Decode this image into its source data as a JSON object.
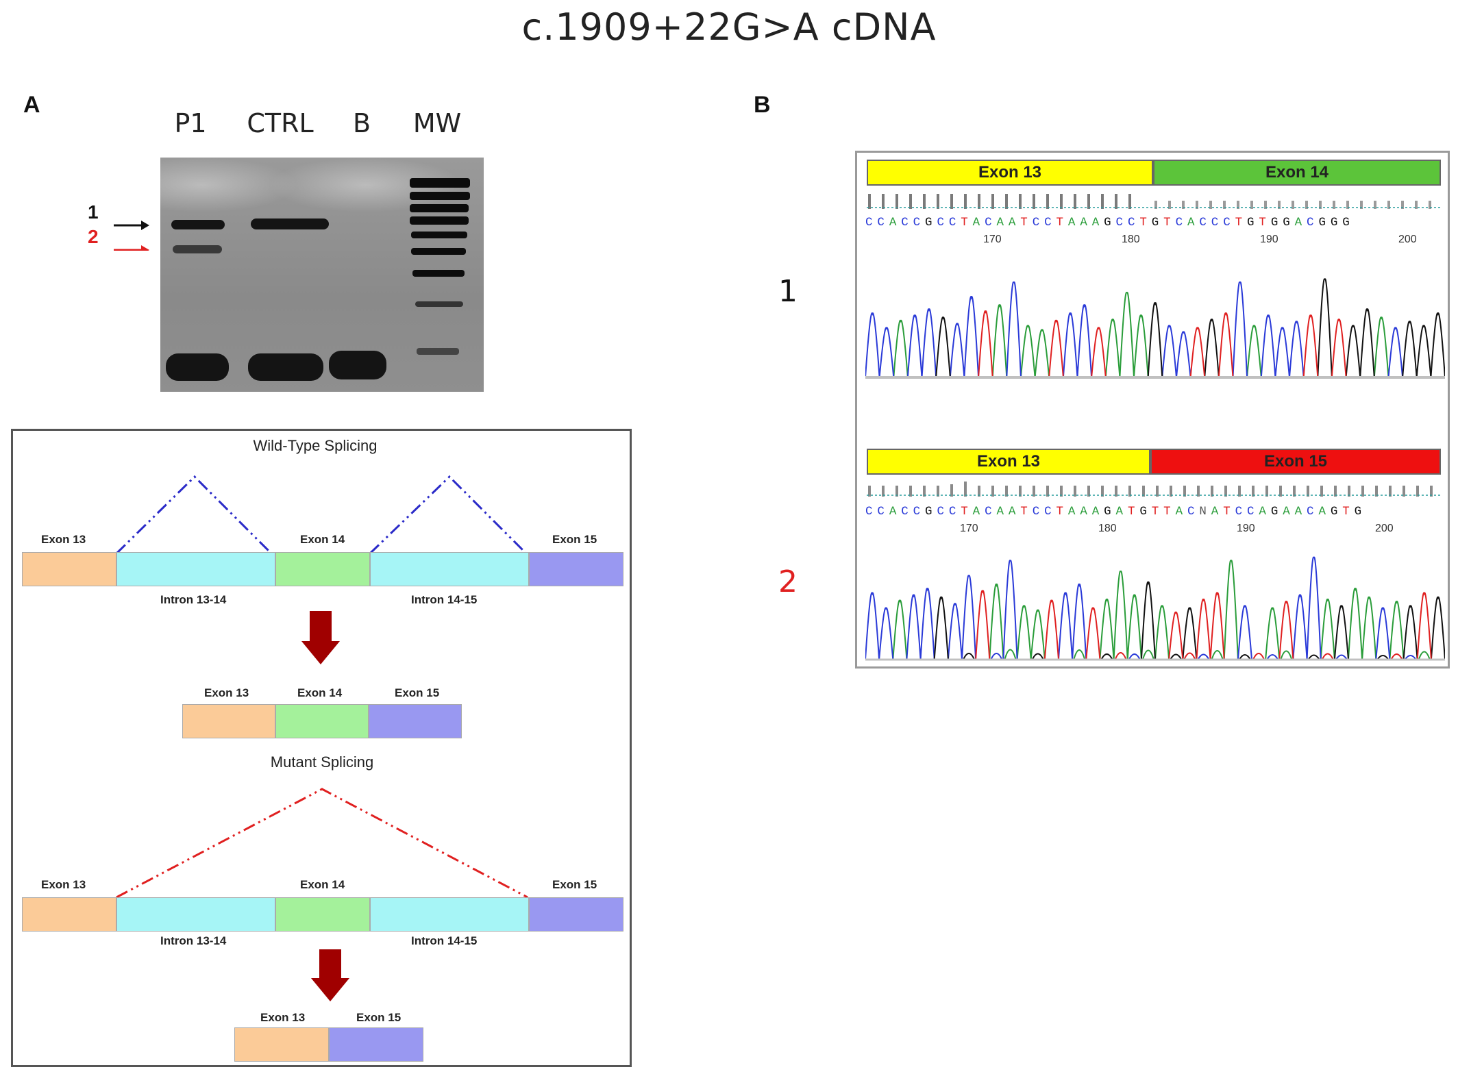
{
  "title": "c.1909+22G>A   cDNA",
  "panel_a": {
    "letter": "A",
    "lanes": [
      "P1",
      "CTRL",
      "B",
      "MW"
    ],
    "band_labels": [
      {
        "label": "1",
        "color": "#111111"
      },
      {
        "label": "2",
        "color": "#e02020"
      }
    ],
    "diagram": {
      "wild_type_title": "Wild-Type Splicing",
      "mutant_title": "Mutant Splicing",
      "exon13": "Exon 13",
      "exon14": "Exon 14",
      "exon15": "Exon 15",
      "intron_13_14": "Intron 13-14",
      "intron_14_15": "Intron 14-15",
      "colors": {
        "exon13": "#fbcb98",
        "exon14": "#a4f19b",
        "exon15": "#9998f1",
        "intron": "#a6f5f6",
        "wild_type_splice_line": "#2a2ac8",
        "mutant_splice_line": "#e02020",
        "arrow": "#a00000"
      }
    }
  },
  "panel_b": {
    "letter": "B",
    "traces": [
      {
        "label": "1",
        "label_color": "#111111",
        "exon_left": "Exon 13",
        "exon_right": "Exon 14",
        "exon_right_color": "#5cc43a",
        "sequence": "CCACCGCCTACAATCCTAAAGCCTGTCACCCTGTGGACGGG",
        "positions": [
          "170",
          "180",
          "190",
          "200"
        ]
      },
      {
        "label": "2",
        "label_color": "#e02020",
        "exon_left": "Exon 13",
        "exon_right": "Exon 15",
        "exon_right_color": "#ee1010",
        "sequence": "CCACCGCCTACAATCCTAAAGATGTTACNATCCAGAACAGTG",
        "positions": [
          "170",
          "180",
          "190",
          "200"
        ]
      }
    ],
    "colors": {
      "exon13": "#ffff00",
      "A": "#2a9d3a",
      "C": "#2a3ad8",
      "G": "#111111",
      "T": "#e02020"
    }
  }
}
